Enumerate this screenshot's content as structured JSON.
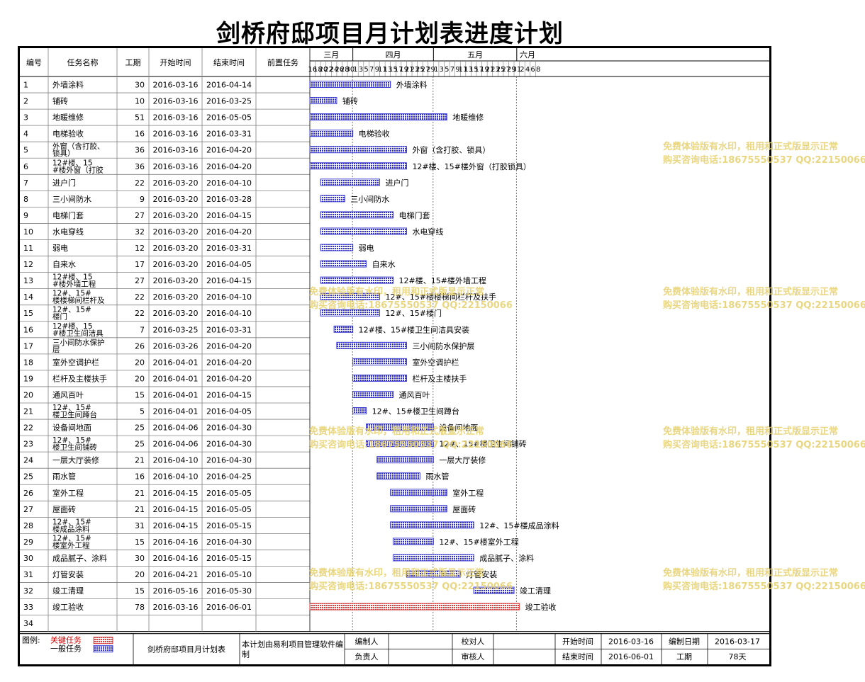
{
  "title": "剑桥府邸项目月计划表进度计划",
  "headers": {
    "id": "编号",
    "name": "任务名称",
    "duration": "工期",
    "start": "开始时间",
    "end": "结束时间",
    "predecessor": "前置任务"
  },
  "timeline": {
    "months": [
      "三月",
      "四月",
      "五月",
      "六月"
    ],
    "days": [
      16,
      18,
      20,
      22,
      24,
      26,
      28,
      30,
      1,
      3,
      5,
      7,
      9,
      11,
      13,
      15,
      17,
      19,
      21,
      23,
      25,
      27,
      29,
      1,
      3,
      5,
      7,
      9,
      11,
      13,
      15,
      17,
      19,
      21,
      23,
      25,
      27,
      29,
      31,
      2,
      4,
      6,
      8
    ]
  },
  "chart_data": {
    "type": "gantt",
    "title": "剑桥府邸项目月计划表进度计划",
    "x_range": [
      "2016-03-16",
      "2016-06-08"
    ],
    "tasks": [
      {
        "id": "1",
        "name": "外墙涂料",
        "duration": "30",
        "start": "2016-03-16",
        "end": "2016-04-14",
        "label": "外墙涂料",
        "critical": false
      },
      {
        "id": "2",
        "name": "铺砖",
        "duration": "10",
        "start": "2016-03-16",
        "end": "2016-03-25",
        "label": "铺砖",
        "critical": false
      },
      {
        "id": "3",
        "name": "地暖维修",
        "duration": "51",
        "start": "2016-03-16",
        "end": "2016-05-05",
        "label": "地暖维修",
        "critical": false
      },
      {
        "id": "4",
        "name": "电梯验收",
        "duration": "16",
        "start": "2016-03-16",
        "end": "2016-03-31",
        "label": "电梯验收",
        "critical": false
      },
      {
        "id": "5",
        "name": "外窗（含打胶、锁具）",
        "duration": "36",
        "start": "2016-03-16",
        "end": "2016-04-20",
        "label": "外窗（含打胶、锁具）",
        "critical": false
      },
      {
        "id": "6",
        "name": "12#楼、15#楼外窗（打胶锁具）",
        "duration": "36",
        "start": "2016-03-16",
        "end": "2016-04-20",
        "label": "12#楼、15#楼外窗（打胶锁具）",
        "critical": false
      },
      {
        "id": "7",
        "name": "进户门",
        "duration": "22",
        "start": "2016-03-20",
        "end": "2016-04-10",
        "label": "进户门",
        "critical": false
      },
      {
        "id": "8",
        "name": "三小间防水",
        "duration": "9",
        "start": "2016-03-20",
        "end": "2016-03-28",
        "label": "三小间防水",
        "critical": false
      },
      {
        "id": "9",
        "name": "电梯门套",
        "duration": "27",
        "start": "2016-03-20",
        "end": "2016-04-15",
        "label": "电梯门套",
        "critical": false
      },
      {
        "id": "10",
        "name": "水电穿线",
        "duration": "32",
        "start": "2016-03-20",
        "end": "2016-04-20",
        "label": "水电穿线",
        "critical": false
      },
      {
        "id": "11",
        "name": "弱电",
        "duration": "12",
        "start": "2016-03-20",
        "end": "2016-03-31",
        "label": "弱电",
        "critical": false
      },
      {
        "id": "12",
        "name": "自来水",
        "duration": "17",
        "start": "2016-03-20",
        "end": "2016-04-05",
        "label": "自来水",
        "critical": false
      },
      {
        "id": "13",
        "name": "12#楼、15#楼外墙工程",
        "duration": "27",
        "start": "2016-03-20",
        "end": "2016-04-15",
        "label": "12#楼、15#楼外墙工程",
        "critical": false
      },
      {
        "id": "14",
        "name": "12#、15#楼楼梯间栏杆及扶手",
        "duration": "22",
        "start": "2016-03-20",
        "end": "2016-04-10",
        "label": "12#、15#楼楼梯间栏杆及扶手",
        "critical": false
      },
      {
        "id": "15",
        "name": "12#、15#楼门",
        "duration": "22",
        "start": "2016-03-20",
        "end": "2016-04-10",
        "label": "12#、15#楼门",
        "critical": false
      },
      {
        "id": "16",
        "name": "12#楼、15#楼卫生间洁具安装",
        "duration": "7",
        "start": "2016-03-25",
        "end": "2016-03-31",
        "label": "12#楼、15#楼卫生间洁具安装",
        "critical": false
      },
      {
        "id": "17",
        "name": "三小间防水保护层",
        "duration": "26",
        "start": "2016-03-26",
        "end": "2016-04-20",
        "label": "三小间防水保护层",
        "critical": false
      },
      {
        "id": "18",
        "name": "室外空调护栏",
        "duration": "20",
        "start": "2016-04-01",
        "end": "2016-04-20",
        "label": "室外空调护栏",
        "critical": false
      },
      {
        "id": "19",
        "name": "栏杆及主楼扶手",
        "duration": "20",
        "start": "2016-04-01",
        "end": "2016-04-20",
        "label": "栏杆及主楼扶手",
        "critical": false
      },
      {
        "id": "20",
        "name": "通风百叶",
        "duration": "15",
        "start": "2016-04-01",
        "end": "2016-04-15",
        "label": "通风百叶",
        "critical": false
      },
      {
        "id": "21",
        "name": "12#、15#楼卫生间蹲台",
        "duration": "5",
        "start": "2016-04-01",
        "end": "2016-04-05",
        "label": "12#、15#楼卫生间蹲台",
        "critical": false
      },
      {
        "id": "22",
        "name": "设备间地面",
        "duration": "25",
        "start": "2016-04-06",
        "end": "2016-04-30",
        "label": "设备间地面",
        "critical": false
      },
      {
        "id": "23",
        "name": "12#、15#楼卫生间铺砖",
        "duration": "25",
        "start": "2016-04-06",
        "end": "2016-04-30",
        "label": "12#、15#楼卫生间铺砖",
        "critical": false
      },
      {
        "id": "24",
        "name": "一层大厅装修",
        "duration": "21",
        "start": "2016-04-10",
        "end": "2016-04-30",
        "label": "一层大厅装修",
        "critical": false
      },
      {
        "id": "25",
        "name": "雨水管",
        "duration": "16",
        "start": "2016-04-10",
        "end": "2016-04-25",
        "label": "雨水管",
        "critical": false
      },
      {
        "id": "26",
        "name": "室外工程",
        "duration": "21",
        "start": "2016-04-15",
        "end": "2016-05-05",
        "label": "室外工程",
        "critical": false
      },
      {
        "id": "27",
        "name": "屋面砖",
        "duration": "21",
        "start": "2016-04-15",
        "end": "2016-05-05",
        "label": "屋面砖",
        "critical": false
      },
      {
        "id": "28",
        "name": "12#、15#楼成品涂料",
        "duration": "31",
        "start": "2016-04-15",
        "end": "2016-05-15",
        "label": "12#、15#楼成品涂料",
        "critical": false
      },
      {
        "id": "29",
        "name": "12#、15#楼室外工程",
        "duration": "15",
        "start": "2016-04-16",
        "end": "2016-04-30",
        "label": "12#、15#楼室外工程",
        "critical": false
      },
      {
        "id": "30",
        "name": "成品腻子、涂料",
        "duration": "30",
        "start": "2016-04-16",
        "end": "2016-05-15",
        "label": "成品腻子、涂料",
        "critical": false
      },
      {
        "id": "31",
        "name": "灯管安装",
        "duration": "20",
        "start": "2016-04-21",
        "end": "2016-05-10",
        "label": "灯管安装",
        "critical": false
      },
      {
        "id": "32",
        "name": "竣工清理",
        "duration": "15",
        "start": "2016-05-16",
        "end": "2016-05-30",
        "label": "竣工清理",
        "critical": false
      },
      {
        "id": "33",
        "name": "竣工验收",
        "duration": "78",
        "start": "2016-03-16",
        "end": "2016-06-01",
        "label": "竣工验收",
        "critical": true
      }
    ],
    "empty_row_id": "34"
  },
  "footer": {
    "legend_label": "图例:",
    "legend_critical": "关键任务",
    "legend_normal": "一般任务",
    "table_name": "剑桥府邸项目月计划表",
    "software_note": "本计划由易利项目管理软件编制",
    "editor_label": "编制人",
    "owner_label": "负责人",
    "checker_label": "校对人",
    "reviewer_label": "审核人",
    "start_label": "开始时间",
    "start_value": "2016-03-16",
    "end_label": "结束时间",
    "end_value": "2016-06-01",
    "date_label": "编制日期",
    "date_value": "2016-03-17",
    "duration_label": "工期",
    "duration_value": "78天"
  },
  "watermark": {
    "line1": "免费体验版有水印，租用和正式版显示正常",
    "line2": "购买咨询电话:18675550537 QQ:22150066"
  },
  "colors": {
    "normal_bar": "#3b3bd4",
    "critical_bar": "#d83a3a",
    "grid": "#808080",
    "watermark": "#e6cf6a"
  }
}
